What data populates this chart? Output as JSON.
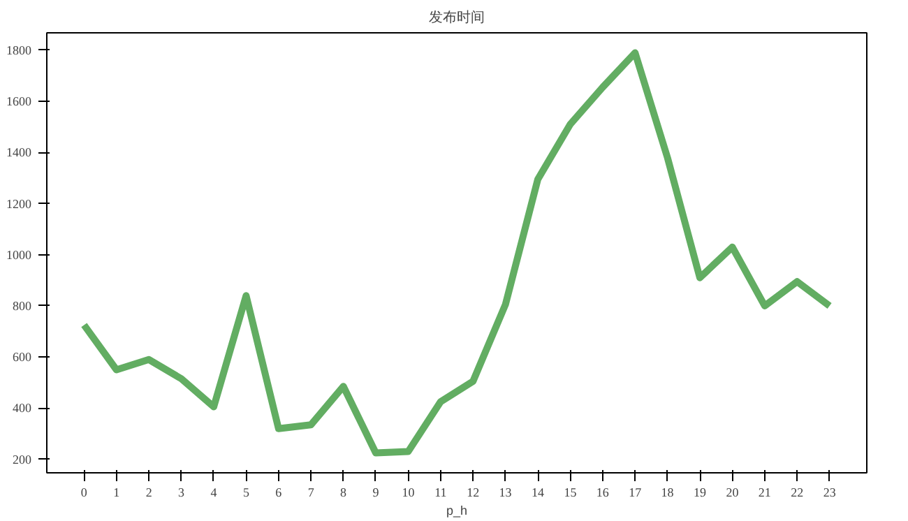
{
  "chart_data": {
    "type": "line",
    "title": "发布时间",
    "xlabel": "p_h",
    "x": [
      0,
      1,
      2,
      3,
      4,
      5,
      6,
      7,
      8,
      9,
      10,
      11,
      12,
      13,
      14,
      15,
      16,
      17,
      18,
      19,
      20,
      21,
      22,
      23
    ],
    "series": [
      {
        "color": "#62ad62",
        "values": [
          725,
          550,
          590,
          515,
          405,
          840,
          320,
          335,
          485,
          225,
          230,
          425,
          505,
          805,
          1295,
          1510,
          1655,
          1790,
          1380,
          910,
          1030,
          800,
          895,
          800
        ]
      }
    ],
    "xlim": [
      -1.15,
      24.15
    ],
    "ylim": [
      147,
      1868
    ],
    "xticks": [
      0,
      1,
      2,
      3,
      4,
      5,
      6,
      7,
      8,
      9,
      10,
      11,
      12,
      13,
      14,
      15,
      16,
      17,
      18,
      19,
      20,
      21,
      22,
      23
    ],
    "yticks": [
      200,
      400,
      600,
      800,
      1000,
      1200,
      1400,
      1600,
      1800
    ],
    "grid": false,
    "marker": "none",
    "line_style": "solid"
  }
}
